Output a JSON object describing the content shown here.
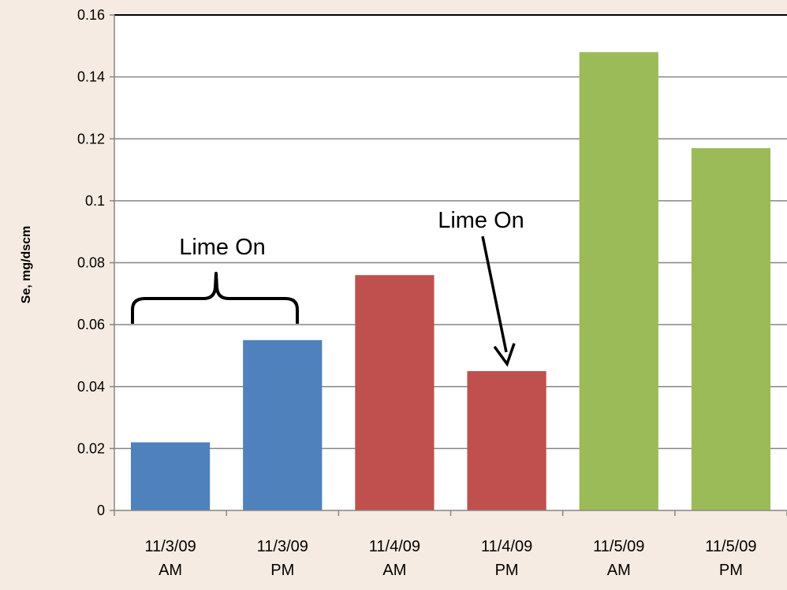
{
  "chart_data": {
    "type": "bar",
    "title": "",
    "xlabel": "",
    "ylabel": "Se, mg/dscm",
    "ylim": [
      0,
      0.16
    ],
    "yticks": [
      0,
      0.02,
      0.04,
      0.06,
      0.08,
      0.1,
      0.12,
      0.14,
      0.16
    ],
    "ytick_labels": [
      "0",
      "0.02",
      "0.04",
      "0.06",
      "0.08",
      "0.1",
      "0.12",
      "0.14",
      "0.16"
    ],
    "grid": true,
    "legend": "none",
    "categories": [
      [
        "11/3/09",
        "AM"
      ],
      [
        "11/3/09",
        "PM"
      ],
      [
        "11/4/09",
        "AM"
      ],
      [
        "11/4/09",
        "PM"
      ],
      [
        "11/5/09",
        "AM"
      ],
      [
        "11/5/09",
        "PM"
      ]
    ],
    "values": [
      0.022,
      0.055,
      0.076,
      0.045,
      0.148,
      0.117
    ],
    "bar_colors": [
      "#4f81bd",
      "#4f81bd",
      "#c0504d",
      "#c0504d",
      "#9bbb59",
      "#9bbb59"
    ],
    "annotations": [
      {
        "text": "Lime On",
        "kind": "brace",
        "spans_categories": [
          0,
          1
        ]
      },
      {
        "text": "Lime On",
        "kind": "arrow",
        "points_to_category": 3
      }
    ]
  },
  "colors": {
    "background": "#f6ebe2",
    "plot_area": "#ffffff",
    "gridline": "#868686",
    "axis": "#868686",
    "text": "#000000"
  }
}
